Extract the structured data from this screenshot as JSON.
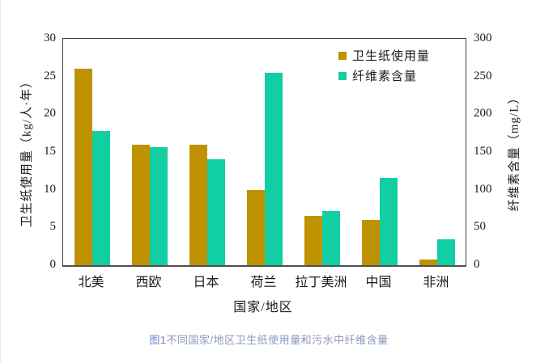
{
  "chart_data": {
    "type": "bar",
    "categories": [
      "北美",
      "西欧",
      "日本",
      "荷兰",
      "拉丁美洲",
      "中国",
      "非洲"
    ],
    "series": [
      {
        "name": "卫生纸使用量",
        "axis": "left",
        "color": "#BE9201",
        "values": [
          26,
          16,
          16,
          10,
          6.5,
          6,
          0.8
        ]
      },
      {
        "name": "纤维素含量",
        "axis": "right",
        "color": "#12CFA3",
        "values": [
          178,
          156,
          140,
          255,
          72,
          116,
          34
        ]
      }
    ],
    "left_axis": {
      "label": "卫生纸使用量（kg/人·年）",
      "min": 0,
      "max": 30,
      "ticks": [
        0,
        5,
        10,
        15,
        20,
        25,
        30
      ]
    },
    "right_axis": {
      "label": "纤维素含量（mg/L）",
      "min": 0,
      "max": 300,
      "ticks": [
        0,
        50,
        100,
        150,
        200,
        250,
        300
      ]
    },
    "xlabel": "国家/地区",
    "legend_position": "top-right-inside",
    "grid": false
  },
  "caption": {
    "prefix": "图1",
    "text": "不同国家/地区卫生纸使用量和污水中纤维含量"
  },
  "colors": {
    "usage_bar": "#BE9201",
    "cellulose_bar": "#12CFA3",
    "frame": "#3e3e3e",
    "caption_prefix": "#7282c8",
    "caption_text": "#8d96c2",
    "background": "#ffffff"
  }
}
